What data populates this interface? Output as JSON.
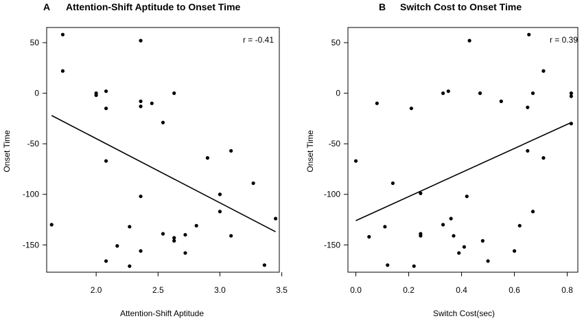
{
  "chart_data": [
    {
      "type": "scatter",
      "panel_letter": "A",
      "title": "Attention-Shift Aptitude to Onset Time",
      "xlabel": "Attention-Shift Aptitude",
      "ylabel": "Onset Time",
      "annotation": "r = -0.41",
      "xlim": [
        1.6,
        3.48
      ],
      "ylim": [
        -177,
        65
      ],
      "xticks": [
        2.0,
        2.5,
        3.0,
        3.5
      ],
      "xtick_labels": [
        "2.0",
        "2.5",
        "3.0",
        "3.5"
      ],
      "yticks": [
        50,
        0,
        -50,
        -100,
        -150
      ],
      "ytick_labels": [
        "50",
        "0",
        "-50",
        "-100",
        "-150"
      ],
      "points": [
        [
          1.64,
          -130
        ],
        [
          1.73,
          58
        ],
        [
          1.73,
          22
        ],
        [
          2.0,
          0
        ],
        [
          2.0,
          -2
        ],
        [
          2.08,
          2
        ],
        [
          2.08,
          -15
        ],
        [
          2.08,
          -67
        ],
        [
          2.08,
          -166
        ],
        [
          2.17,
          -151
        ],
        [
          2.27,
          -132
        ],
        [
          2.27,
          -171
        ],
        [
          2.36,
          52
        ],
        [
          2.36,
          -8
        ],
        [
          2.36,
          -13
        ],
        [
          2.36,
          -102
        ],
        [
          2.36,
          -156
        ],
        [
          2.45,
          -10
        ],
        [
          2.54,
          -29
        ],
        [
          2.54,
          -139
        ],
        [
          2.63,
          0
        ],
        [
          2.63,
          -143
        ],
        [
          2.63,
          -146
        ],
        [
          2.72,
          -140
        ],
        [
          2.72,
          -158
        ],
        [
          2.81,
          -131
        ],
        [
          2.9,
          -64
        ],
        [
          3.0,
          -100
        ],
        [
          3.0,
          -117
        ],
        [
          3.09,
          -57
        ],
        [
          3.09,
          -141
        ],
        [
          3.27,
          -89
        ],
        [
          3.36,
          -170
        ],
        [
          3.45,
          -124
        ]
      ],
      "regression_line": {
        "x": [
          1.64,
          3.45
        ],
        "y": [
          -22,
          -137
        ]
      }
    },
    {
      "type": "scatter",
      "panel_letter": "B",
      "title": "Switch Cost to Onset Time",
      "xlabel": "Switch Cost(sec)",
      "ylabel": "Onset Time",
      "annotation": "r = 0.39",
      "xlim": [
        -0.03,
        0.84
      ],
      "ylim": [
        -177,
        65
      ],
      "xticks": [
        0.0,
        0.2,
        0.4,
        0.6,
        0.8
      ],
      "xtick_labels": [
        "0.0",
        "0.2",
        "0.4",
        "0.6",
        "0.8"
      ],
      "yticks": [
        50,
        0,
        -50,
        -100,
        -150
      ],
      "ytick_labels": [
        "50",
        "0",
        "-50",
        "-100",
        "-150"
      ],
      "points": [
        [
          0.0,
          -67
        ],
        [
          0.05,
          -142
        ],
        [
          0.08,
          -10
        ],
        [
          0.11,
          -132
        ],
        [
          0.12,
          -170
        ],
        [
          0.14,
          -89
        ],
        [
          0.21,
          -15
        ],
        [
          0.22,
          -171
        ],
        [
          0.245,
          -99
        ],
        [
          0.245,
          -139
        ],
        [
          0.245,
          -141
        ],
        [
          0.33,
          0
        ],
        [
          0.33,
          -130
        ],
        [
          0.35,
          2
        ],
        [
          0.36,
          -124
        ],
        [
          0.37,
          -141
        ],
        [
          0.39,
          -158
        ],
        [
          0.41,
          -152
        ],
        [
          0.42,
          -102
        ],
        [
          0.43,
          52
        ],
        [
          0.47,
          0
        ],
        [
          0.48,
          -146
        ],
        [
          0.5,
          -166
        ],
        [
          0.55,
          -8
        ],
        [
          0.6,
          -156
        ],
        [
          0.62,
          -131
        ],
        [
          0.65,
          -14
        ],
        [
          0.65,
          -57
        ],
        [
          0.655,
          58
        ],
        [
          0.67,
          0
        ],
        [
          0.67,
          -117
        ],
        [
          0.71,
          22
        ],
        [
          0.71,
          -64
        ],
        [
          0.815,
          0
        ],
        [
          0.815,
          -3
        ],
        [
          0.815,
          -30
        ]
      ],
      "regression_line": {
        "x": [
          0.0,
          0.815
        ],
        "y": [
          -126,
          -29
        ]
      }
    }
  ]
}
